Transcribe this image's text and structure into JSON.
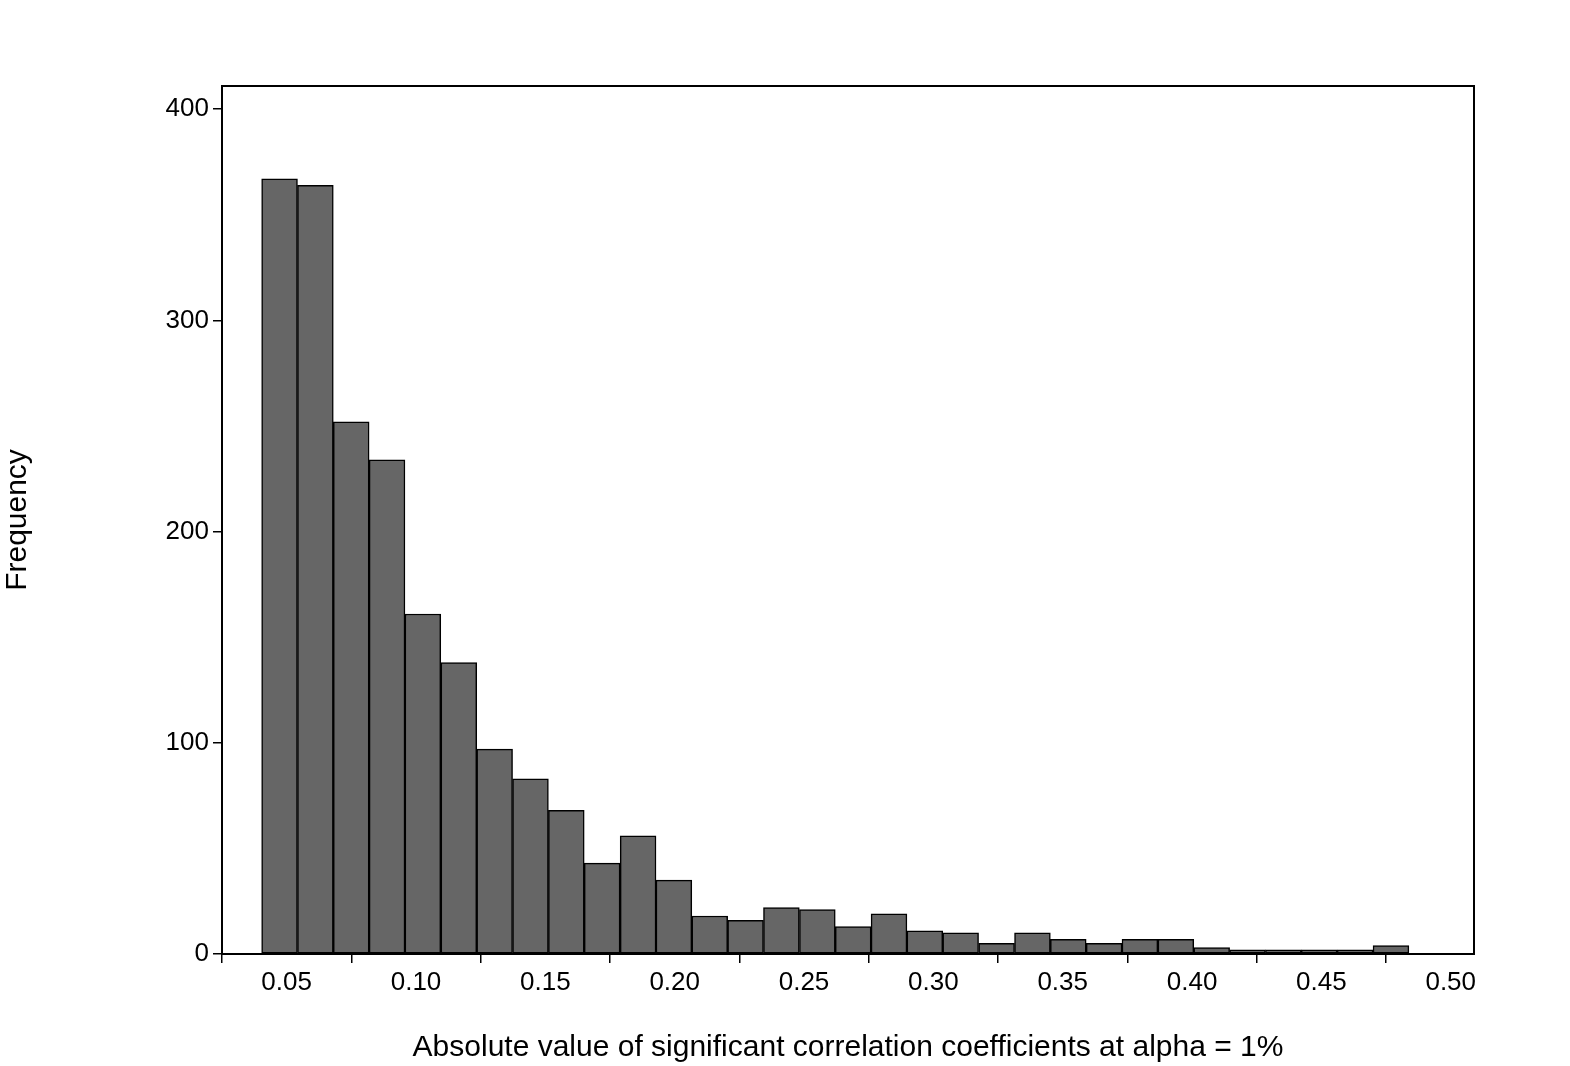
{
  "chart_data": {
    "type": "histogram",
    "xlabel": "Absolute value of significant correlation coefficients at alpha = 1%",
    "ylabel": "Frequency",
    "bins": [
      0.0403,
      0.0542,
      0.068,
      0.0819,
      0.0957,
      0.1096,
      0.1235,
      0.1373,
      0.1512,
      0.165,
      0.1789,
      0.1928,
      0.2066,
      0.2205,
      0.2343,
      0.2482,
      0.2621,
      0.2759,
      0.2898,
      0.3036,
      0.3175,
      0.3314,
      0.3452,
      0.3591,
      0.3729,
      0.3868,
      0.4007,
      0.4145,
      0.4284,
      0.4422,
      0.4561,
      0.47,
      0.4838
    ],
    "counts": [
      367,
      364,
      252,
      234,
      161,
      138,
      97,
      83,
      68,
      43,
      56,
      35,
      18,
      16,
      22,
      21,
      13,
      19,
      11,
      10,
      5,
      10,
      7,
      5,
      7,
      7,
      3,
      2,
      2,
      2,
      2,
      4
    ],
    "color": "#666666",
    "xlim": [
      0.025,
      0.509
    ],
    "xticks": [
      0.05,
      {
        "value": 0.1,
        "label": "0.10"
      },
      0.15,
      {
        "value": 0.2,
        "label": "0.20"
      },
      0.25,
      {
        "value": 0.3,
        "label": "0.30"
      },
      0.35,
      {
        "value": 0.4,
        "label": "0.40"
      },
      0.45,
      {
        "value": 0.5,
        "label": "0.50"
      }
    ],
    "ylim": [
      0,
      411
    ],
    "yticks": [
      0,
      100,
      200,
      300,
      400
    ],
    "grid": false
  }
}
